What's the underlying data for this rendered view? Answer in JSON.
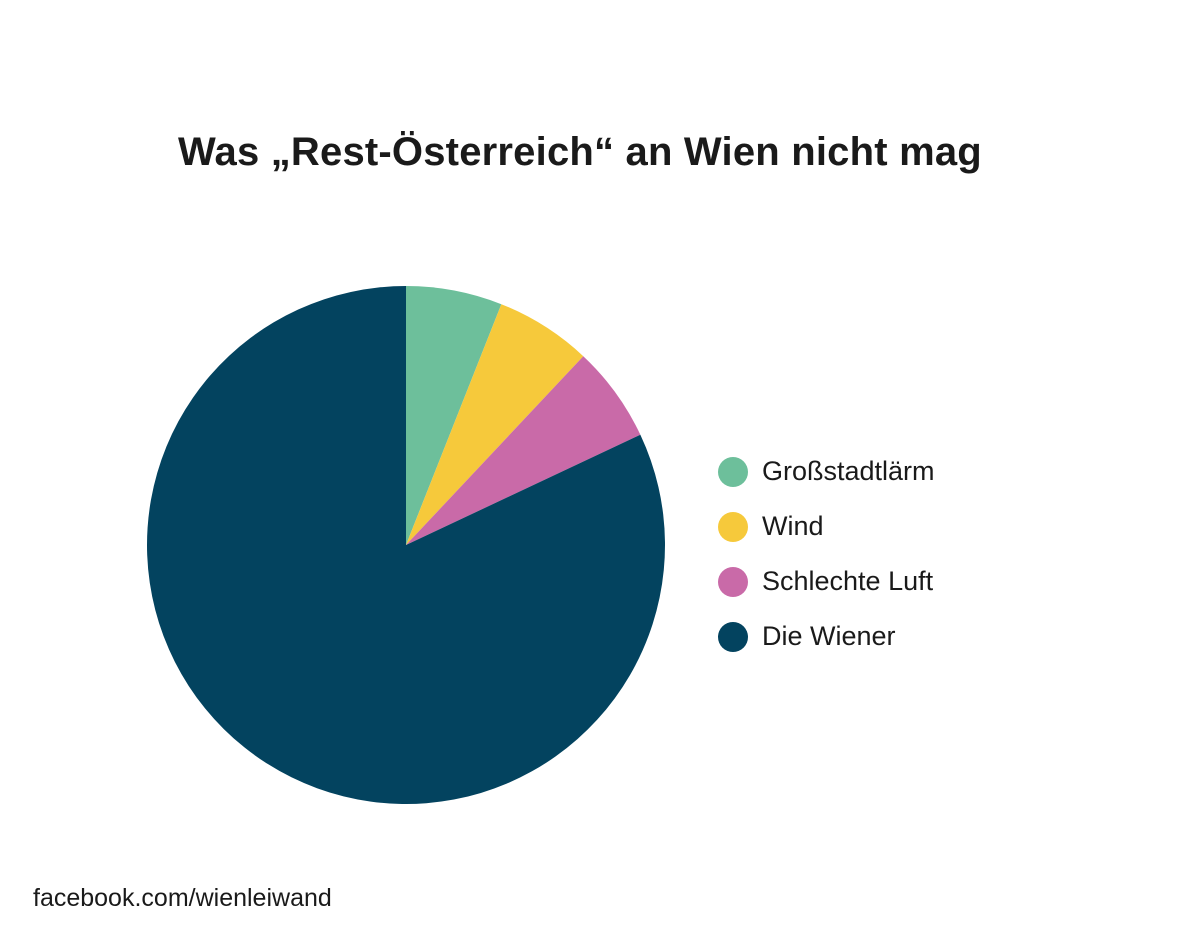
{
  "chart_data": {
    "type": "pie",
    "title": "Was „Rest-Österreich“ an Wien nicht mag",
    "categories": [
      "Großstadtlärm",
      "Wind",
      "Schlechte Luft",
      "Die Wiener"
    ],
    "values": [
      6,
      6,
      6,
      82
    ],
    "colors": [
      "#6dbf9b",
      "#f6c93b",
      "#c96aa8",
      "#03435f"
    ],
    "start": "12 o'clock",
    "direction": "clockwise",
    "legend_position": "right"
  },
  "footer": {
    "source": "facebook.com/wienleiwand"
  }
}
